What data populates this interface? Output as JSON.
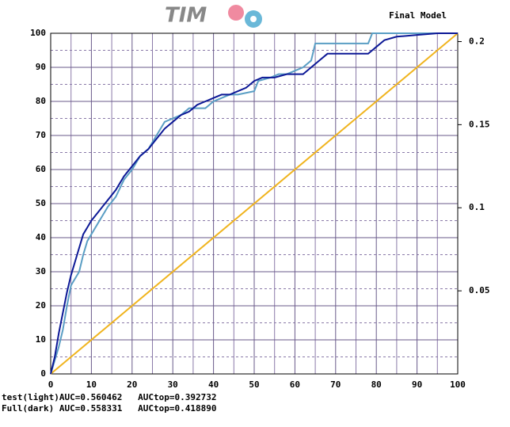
{
  "chart_data": {
    "type": "line",
    "title": "Final Model",
    "logo": "TIM",
    "xlim": [
      0,
      100
    ],
    "xticks": [
      0,
      10,
      20,
      30,
      40,
      50,
      60,
      70,
      80,
      90,
      100
    ],
    "ylim": [
      0,
      100
    ],
    "yticks": [
      0,
      10,
      20,
      30,
      40,
      50,
      60,
      70,
      80,
      90,
      100
    ],
    "y2lim": [
      0,
      0.205
    ],
    "y2ticks": [
      0.05,
      0.1,
      0.15,
      0.2
    ],
    "grid": true,
    "annotations": [
      "test(light)AUC=0.560462   AUCtop=0.392732",
      "Full(dark) AUC=0.558331   AUCtop=0.418890"
    ],
    "series": [
      {
        "color": "#f0b41e",
        "x": [
          0,
          100
        ],
        "values": [
          0,
          100
        ]
      },
      {
        "color": "#5a9ec4",
        "x": [
          0,
          1,
          2,
          3,
          4,
          5,
          6,
          7,
          8,
          9,
          10,
          12,
          14,
          16,
          18,
          20,
          22,
          24,
          26,
          28,
          30,
          32,
          34,
          36,
          38,
          40,
          42,
          44,
          46,
          50,
          51,
          54,
          56,
          58,
          60,
          62,
          64,
          65,
          70,
          75,
          78,
          79,
          100
        ],
        "values": [
          0,
          4,
          8,
          13,
          20,
          26,
          28,
          30,
          35,
          39,
          41,
          45,
          49,
          52,
          57,
          60,
          64,
          66,
          70,
          74,
          75,
          76,
          78,
          78,
          78,
          80,
          81,
          82,
          82,
          83,
          86,
          87,
          88,
          88,
          89,
          90,
          92,
          97,
          97,
          97,
          97,
          100,
          100
        ]
      },
      {
        "color": "#0c1896",
        "x": [
          0,
          1,
          2,
          3,
          4,
          5,
          6,
          7,
          8,
          9,
          10,
          12,
          14,
          16,
          18,
          20,
          22,
          24,
          26,
          28,
          30,
          32,
          34,
          36,
          38,
          40,
          42,
          44,
          46,
          48,
          50,
          52,
          55,
          58,
          62,
          64,
          66,
          68,
          70,
          74,
          78,
          80,
          82,
          85,
          90,
          95,
          100
        ],
        "values": [
          0,
          5,
          12,
          18,
          24,
          29,
          33,
          37,
          41,
          43,
          45,
          48,
          51,
          54,
          58,
          61,
          64,
          66,
          69,
          72,
          74,
          76,
          77,
          79,
          80,
          81,
          82,
          82,
          83,
          84,
          86,
          87,
          87,
          88,
          88,
          90,
          92,
          94,
          94,
          94,
          94,
          96,
          98,
          99,
          99.5,
          100,
          100
        ]
      }
    ]
  }
}
